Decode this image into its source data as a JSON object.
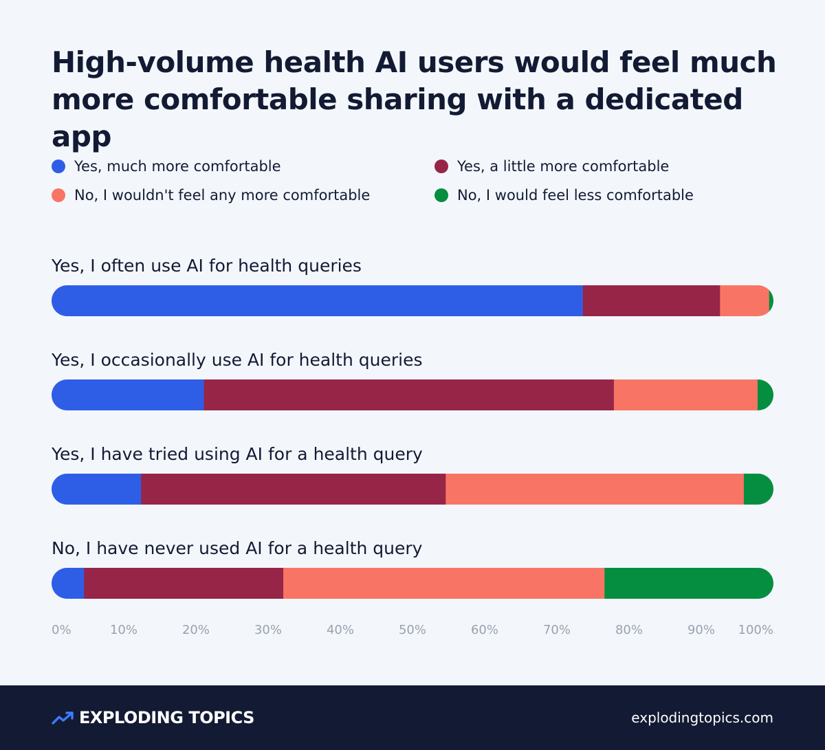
{
  "title": "High-volume health AI users would feel much more comfortable sharing with a dedicated app",
  "colors": {
    "background": "#f3f7fc",
    "text": "#131a33",
    "axis_text": "#9aa1ad",
    "footer": "#131a33"
  },
  "chart_data": {
    "type": "bar",
    "orientation": "horizontal",
    "stacked": true,
    "title": "High-volume health AI users would feel much more comfortable sharing with a dedicated app",
    "categories": [
      "Yes, I often use AI for health queries",
      "Yes, I occasionally use AI for health queries",
      "Yes, I have tried using AI for a health query",
      "No, I have never used AI for a health query"
    ],
    "series": [
      {
        "name": "Yes, much more comfortable",
        "color": "#2f5ee6",
        "values": [
          73.6,
          21.1,
          12.4,
          4.5
        ]
      },
      {
        "name": "Yes, a little more comfortable",
        "color": "#972548",
        "values": [
          19.0,
          56.8,
          42.2,
          27.6
        ]
      },
      {
        "name": "No, I wouldn't feel any more comfortable",
        "color": "#f87565",
        "values": [
          6.8,
          19.9,
          41.3,
          44.5
        ]
      },
      {
        "name": "No, I would feel less comfortable",
        "color": "#068e40",
        "values": [
          0.6,
          2.2,
          4.1,
          23.4
        ]
      }
    ],
    "xlim": [
      0,
      100
    ],
    "x_ticks": [
      "0%",
      "10%",
      "20%",
      "30%",
      "40%",
      "50%",
      "60%",
      "70%",
      "80%",
      "90%",
      "100%"
    ],
    "legend_position": "top",
    "grid": false
  },
  "footer": {
    "brand": "EXPLODING TOPICS",
    "brand_icon": "trend-arrow-icon",
    "site": "explodingtopics.com"
  }
}
